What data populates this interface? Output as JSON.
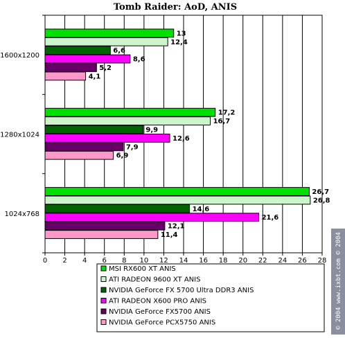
{
  "chart_data": {
    "type": "bar",
    "orientation": "horizontal",
    "title": "Tomb Raider: AoD, ANIS",
    "categories": [
      "1600x1200",
      "1280x1024",
      "1024x768"
    ],
    "xlim": [
      0,
      28
    ],
    "xticks": [
      0,
      2,
      4,
      6,
      8,
      10,
      12,
      14,
      16,
      18,
      20,
      22,
      24,
      26,
      28
    ],
    "grid": true,
    "legend_position": "bottom",
    "series": [
      {
        "name": "MSI  RX600 XT  ANIS",
        "color": "#00e000",
        "values": [
          13,
          17.2,
          26.7
        ],
        "labels": [
          "13",
          "17,2",
          "26,7"
        ]
      },
      {
        "name": "ATI RADEON 9600 XT ANIS",
        "color": "#ccf5cc",
        "values": [
          12.4,
          16.7,
          26.8
        ],
        "labels": [
          "12,4",
          "16,7",
          "26,8"
        ]
      },
      {
        "name": "NVIDIA GeForce FX 5700 Ultra DDR3 ANIS",
        "color": "#006400",
        "values": [
          6.6,
          9.9,
          14.6
        ],
        "labels": [
          "6,6",
          "9,9",
          "14,6"
        ]
      },
      {
        "name": "ATI RADEON X600 PRO ANIS",
        "color": "#ff00ff",
        "values": [
          8.6,
          12.6,
          21.6
        ],
        "labels": [
          "8,6",
          "12,6",
          "21,6"
        ]
      },
      {
        "name": "NVIDIA GeForce FX5700 ANIS",
        "color": "#660066",
        "values": [
          5.2,
          7.9,
          12.1
        ],
        "labels": [
          "5,2",
          "7,9",
          "12,1"
        ]
      },
      {
        "name": "NVIDIA GeForce PCX5750 ANIS",
        "color": "#ff99cc",
        "values": [
          4.1,
          6.9,
          11.4
        ],
        "labels": [
          "4,1",
          "6,9",
          "11,4"
        ]
      }
    ]
  },
  "watermark": "© 2004 www.ixbt.com  © 2004 www.digit-life.com"
}
